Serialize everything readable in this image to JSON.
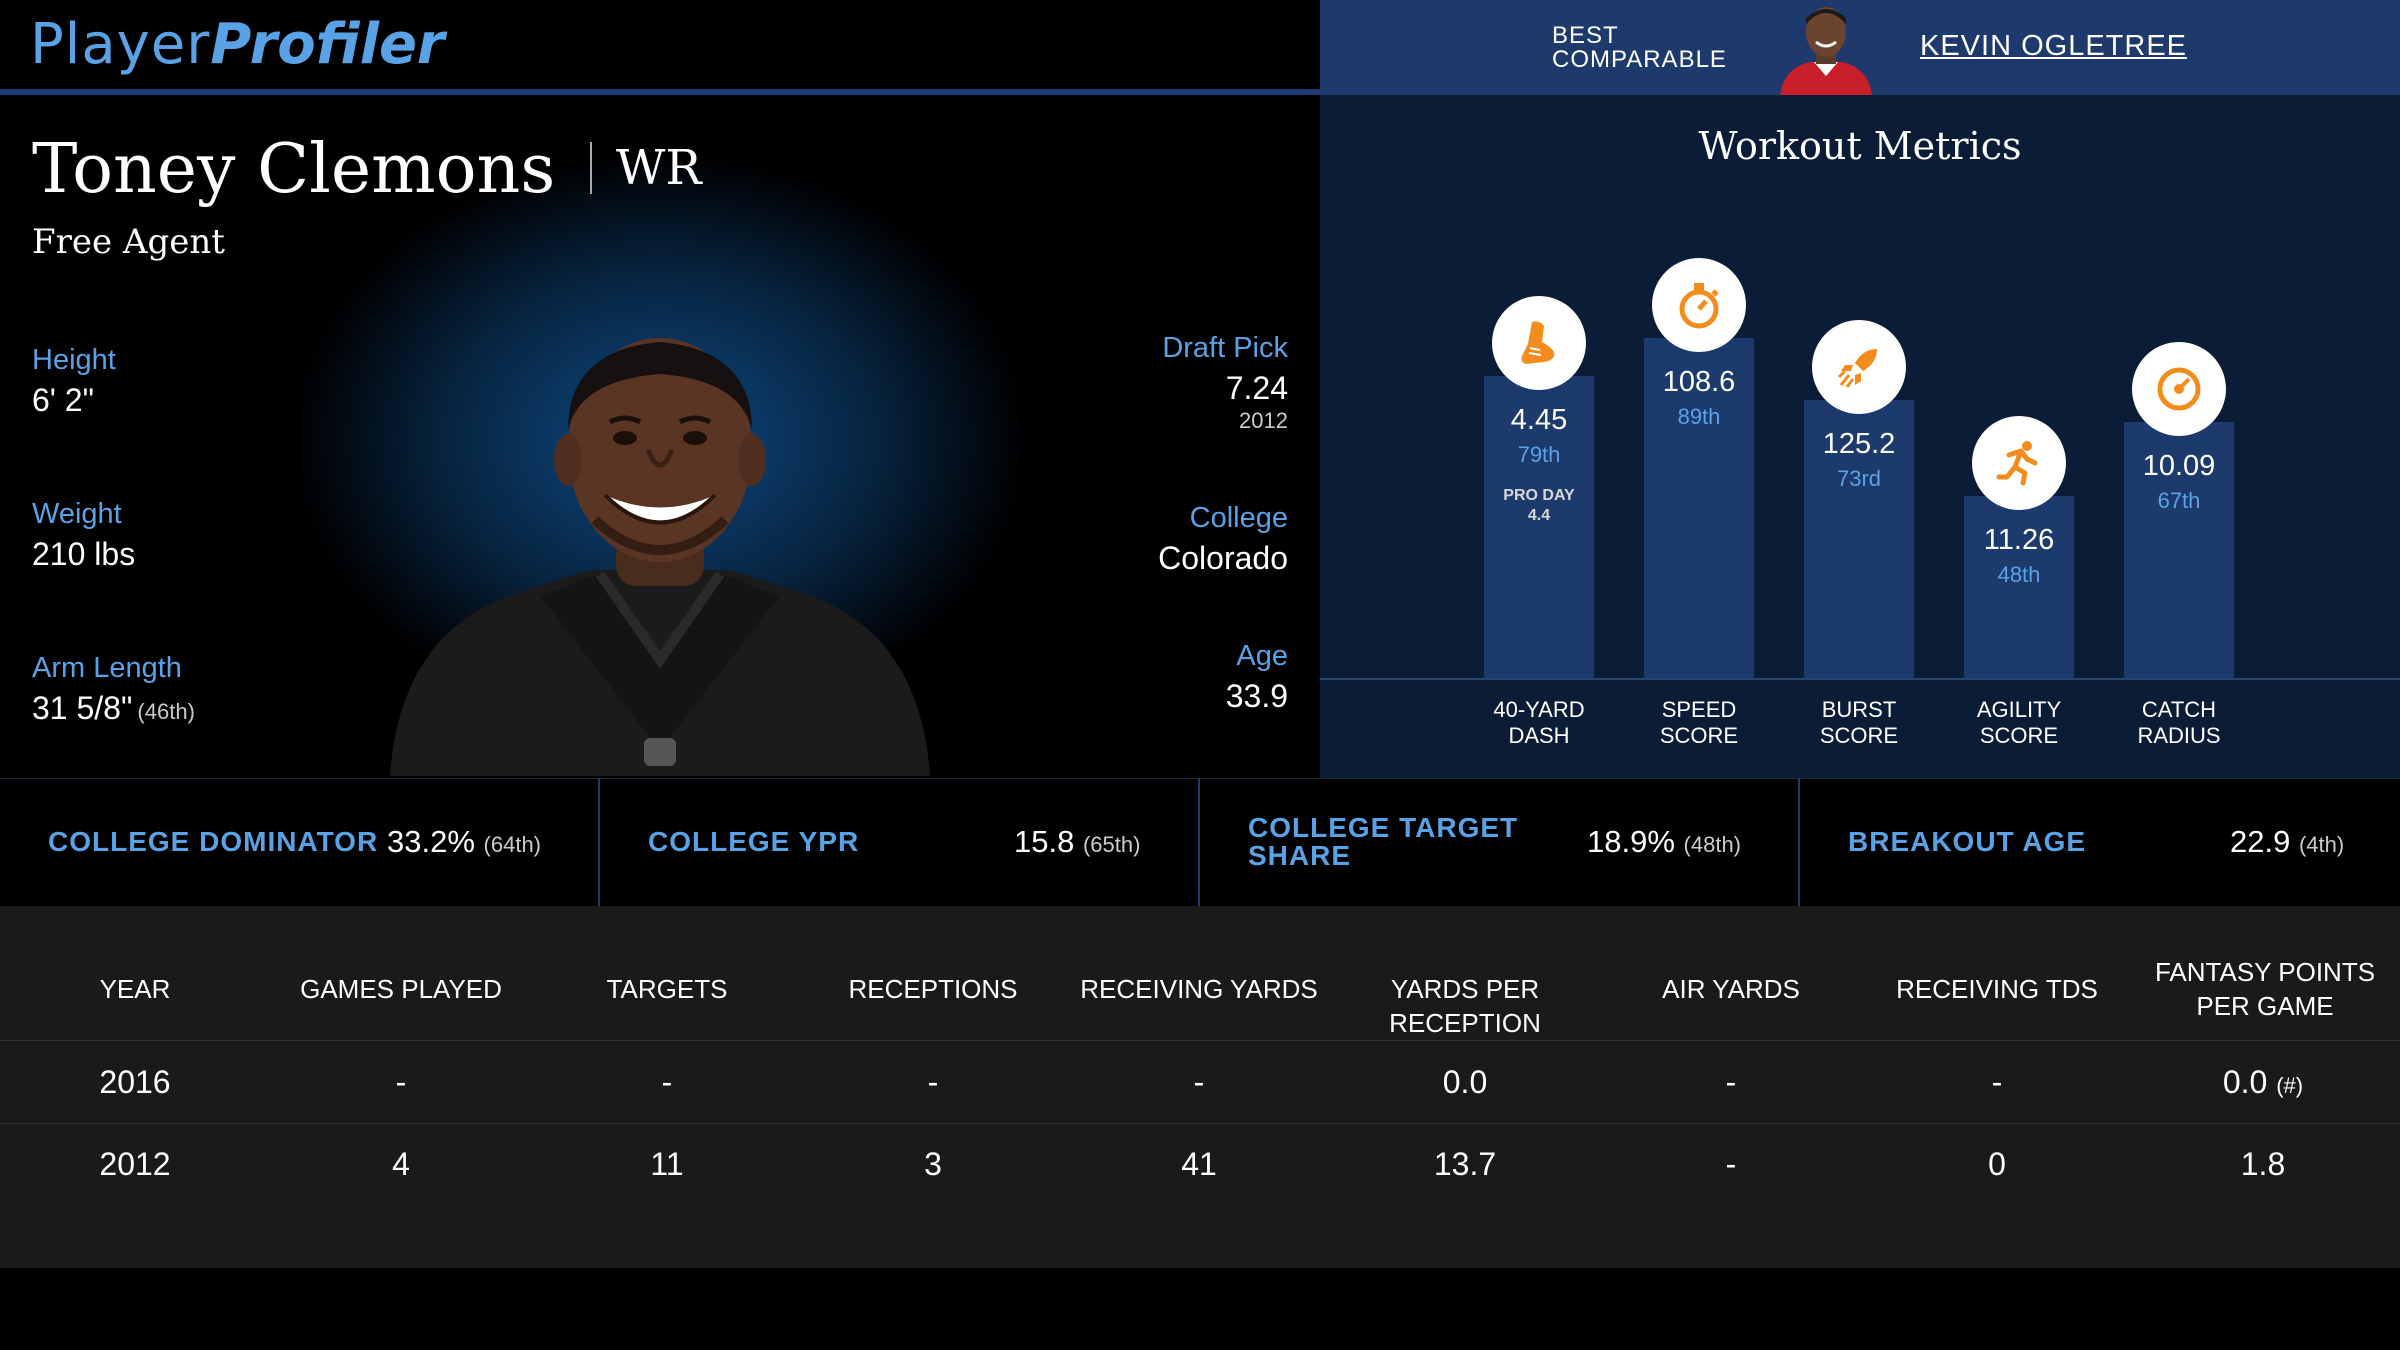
{
  "brand": {
    "part1": "Player",
    "part2": "Profiler"
  },
  "comparable": {
    "label_line1": "BEST",
    "label_line2": "COMPARABLE",
    "name": "KEVIN OGLETREE"
  },
  "player": {
    "name": "Toney Clemons",
    "position": "WR",
    "team": "Free Agent",
    "height": {
      "label": "Height",
      "value": "6' 2\""
    },
    "weight": {
      "label": "Weight",
      "value": "210 lbs"
    },
    "arm_length": {
      "label": "Arm Length",
      "value": "31 5/8\"",
      "pct": "(46th)"
    },
    "draft_pick": {
      "label": "Draft Pick",
      "value": "7.24",
      "year": "2012"
    },
    "college": {
      "label": "College",
      "value": "Colorado"
    },
    "age": {
      "label": "Age",
      "value": "33.9"
    }
  },
  "workout": {
    "title": "Workout Metrics",
    "metrics": [
      {
        "label1": "40-YARD",
        "label2": "DASH",
        "value": "4.45",
        "pct": "79th",
        "extra1": "PRO DAY",
        "extra2": "4.4",
        "icon": "shoe-icon",
        "level": 79
      },
      {
        "label1": "SPEED",
        "label2": "SCORE",
        "value": "108.6",
        "pct": "89th",
        "icon": "stopwatch-icon",
        "level": 89
      },
      {
        "label1": "BURST",
        "label2": "SCORE",
        "value": "125.2",
        "pct": "73rd",
        "icon": "rocket-icon",
        "level": 73
      },
      {
        "label1": "AGILITY",
        "label2": "SCORE",
        "value": "11.26",
        "pct": "48th",
        "icon": "runner-icon",
        "level": 48
      },
      {
        "label1": "CATCH",
        "label2": "RADIUS",
        "value": "10.09",
        "pct": "67th",
        "icon": "target-icon",
        "level": 67
      }
    ]
  },
  "college_metrics": [
    {
      "label": "COLLEGE DOMINATOR",
      "value": "33.2%",
      "pct": "(64th)"
    },
    {
      "label": "COLLEGE YPR",
      "value": "15.8",
      "pct": "(65th)"
    },
    {
      "label1": "COLLEGE TARGET",
      "label2": "SHARE",
      "value": "18.9%",
      "pct": "(48th)"
    },
    {
      "label": "BREAKOUT AGE",
      "value": "22.9",
      "pct": "(4th)"
    }
  ],
  "stats": {
    "headers": [
      "YEAR",
      "GAMES PLAYED",
      "TARGETS",
      "RECEPTIONS",
      "RECEIVING YARDS",
      "YARDS PER RECEPTION",
      "AIR YARDS",
      "RECEIVING TDS",
      "FANTASY POINTS PER GAME"
    ],
    "rows": [
      [
        "2016",
        "-",
        "-",
        "-",
        "-",
        "0.0",
        "-",
        "-",
        "0.0"
      ],
      [
        "2012",
        "4",
        "11",
        "3",
        "41",
        "13.7",
        "-",
        "0",
        "1.8"
      ]
    ],
    "note": "(#)"
  },
  "colors": {
    "accent": "#5aa2e6",
    "bar": "#1d3a6d",
    "icon": "#f28c1c"
  }
}
